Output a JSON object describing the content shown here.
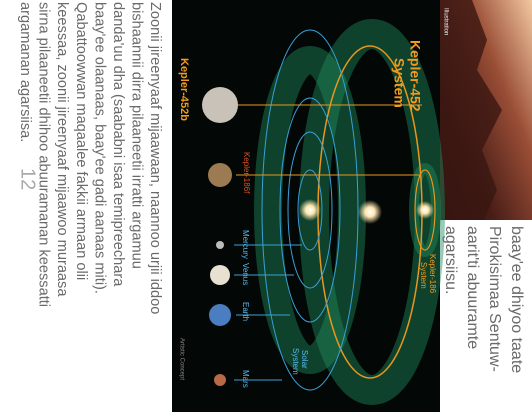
{
  "photo": {
    "credit": "Illustration"
  },
  "sidebar": {
    "lines": [
      "baay'ee dhiyoo taate",
      "Pirokisimaa Sentuw-",
      "aarit'ti abuuramte",
      "agarsiisu."
    ]
  },
  "figure": {
    "kepler452_system": [
      "Kepler-452",
      "System"
    ],
    "kepler186_system": [
      "Kepler-186",
      "System"
    ],
    "kepler452b": "Kepler-452b",
    "kepler186f": "Kepler-186f",
    "mercury": "Mercury",
    "venus": "Venus",
    "earth": "Earth",
    "mars": "Mars",
    "solar_system": [
      "Solar",
      "System"
    ],
    "note": "Artistic Concept"
  },
  "body": {
    "lines": [
      "Zoonii jireenyaaf mijaawaan, naannoo urjii iddoo",
      "bishaannii dirra pilaaneetii irratti argamuu",
      "danda'uu dha (saababni isaa temipreechara",
      "baay'ee olaanaas, baay'ee gadi aanaas miti).",
      "Qabattoowwan maqaalee fakkii armaan olii",
      "keessaa, zoonii jireenyaaf mijaawoo muraasa",
      "sirna pilaaneetii dhihoo abuuramanan keessatti",
      "argamanan agarsiisa."
    ],
    "page_number": "12"
  }
}
